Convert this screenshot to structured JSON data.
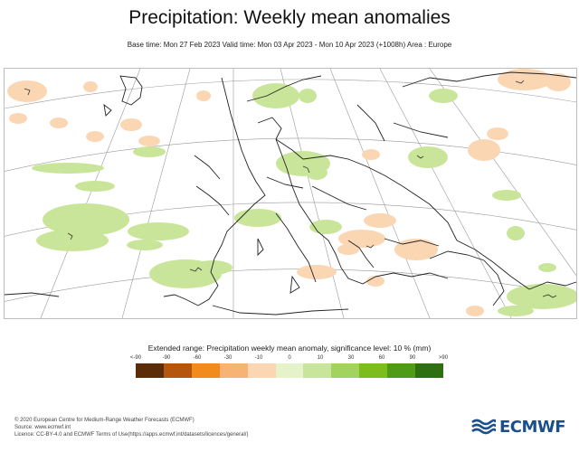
{
  "title": "Precipitation: Weekly mean anomalies",
  "subtitle": "Base time: Mon 27 Feb 2023 Valid time: Mon 03 Apr 2023 - Mon 10 Apr 2023 (+1008h) Area : Europe",
  "legend": {
    "title": "Extended range: Precipitation weekly mean anomaly, significance level: 10 % (mm)",
    "labels": [
      "<-90",
      "-90",
      "-60",
      "-30",
      "-10",
      "0",
      "10",
      "30",
      "60",
      "90",
      ">90"
    ],
    "colors": [
      "#5a2c08",
      "#b5560e",
      "#f28b1e",
      "#f7b373",
      "#fbd6b3",
      "#e6f2c9",
      "#c9e59a",
      "#a3d35f",
      "#7cbc1d",
      "#4f9a19",
      "#2e6f12"
    ]
  },
  "map_colors": {
    "wet": "#c9e59a",
    "dry": "#fbd6b3",
    "coast": "#222222",
    "grid": "#9a9a9a"
  },
  "footer": {
    "line1": "© 2020 European Centre for Medium-Range Weather Forecasts (ECMWF)",
    "line2": "Source: www.ecmwf.int",
    "line3": "Licence: CC-BY-4.0 and ECMWF Terms of Use(https://apps.ecmwf.int/datasets/licences/general/)"
  },
  "logo": {
    "text": "ECMWF",
    "color": "#1a4f8b"
  }
}
